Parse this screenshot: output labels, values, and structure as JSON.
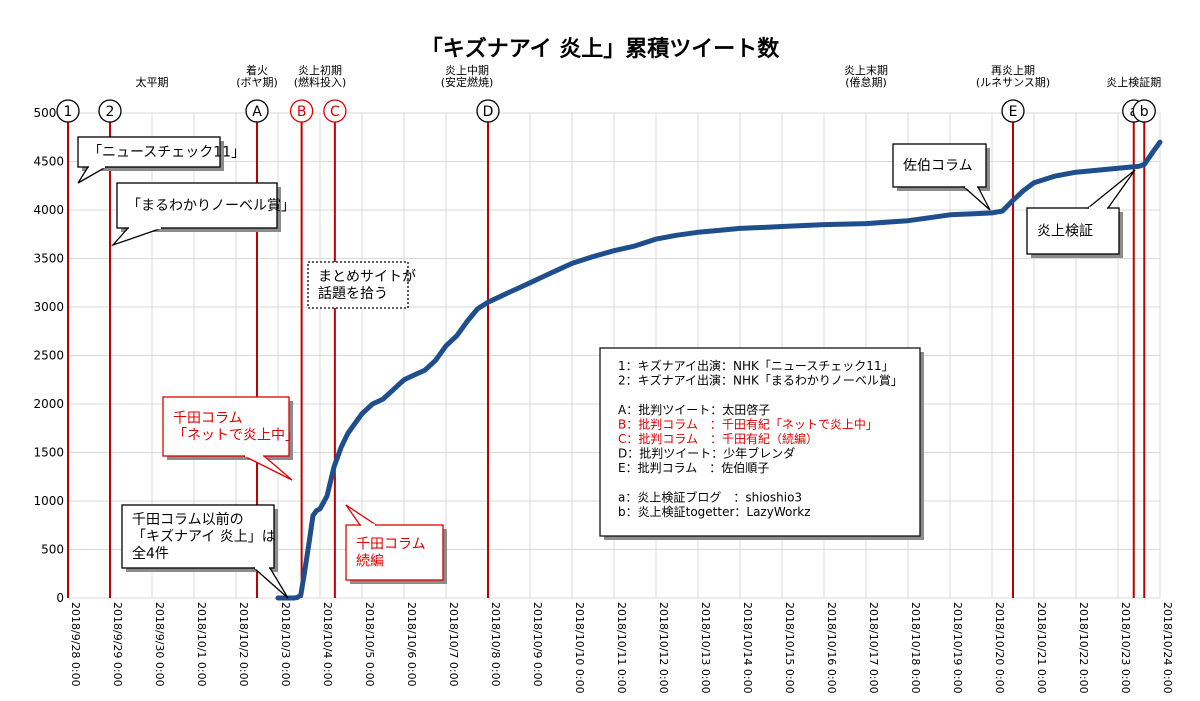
{
  "chart_data": {
    "type": "line",
    "title": "「キズナアイ 炎上」累積ツイート数",
    "ylim": [
      0,
      5000
    ],
    "yticks": [
      0,
      500,
      1000,
      1500,
      2000,
      2500,
      3000,
      3500,
      4000,
      4500,
      5000
    ],
    "ytick_labels": [
      "0",
      "500",
      "1000",
      "1500",
      "2000",
      "2500",
      "3000",
      "3500",
      "4000",
      "4500",
      "5000"
    ],
    "xlim": [
      "2018/9/28 0:00",
      "2018/10/24 0:00"
    ],
    "xtick_labels": [
      "2018/9/28 0:00",
      "2018/9/29 0:00",
      "2018/9/30 0:00",
      "2018/10/1 0:00",
      "2018/10/2 0:00",
      "2018/10/3 0:00",
      "2018/10/4 0:00",
      "2018/10/5 0:00",
      "2018/10/6 0:00",
      "2018/10/7 0:00",
      "2018/10/8 0:00",
      "2018/10/9 0:00",
      "2018/10/10 0:00",
      "2018/10/11 0:00",
      "2018/10/12 0:00",
      "2018/10/13 0:00",
      "2018/10/14 0:00",
      "2018/10/15 0:00",
      "2018/10/16 0:00",
      "2018/10/17 0:00",
      "2018/10/18 0:00",
      "2018/10/19 0:00",
      "2018/10/20 0:00",
      "2018/10/21 0:00",
      "2018/10/22 0:00",
      "2018/10/23 0:00",
      "2018/10/24 0:00"
    ],
    "grid": true,
    "colors": {
      "line": "#1f4e8c",
      "marker": "#c00000",
      "grid": "#d9d9d9",
      "red_text": "#e00000"
    },
    "series": [
      {
        "x": [
          "2018/10/3 0:00",
          "2018/10/3 6:00",
          "2018/10/3 9:00",
          "2018/10/3 11:00",
          "2018/10/3 13:00",
          "2018/10/3 15:00",
          "2018/10/3 18:00",
          "2018/10/3 20:00",
          "2018/10/3 22:00",
          "2018/10/4 0:00",
          "2018/10/4 4:00",
          "2018/10/4 8:00",
          "2018/10/4 12:00",
          "2018/10/4 16:00",
          "2018/10/4 20:00",
          "2018/10/5 0:00",
          "2018/10/5 6:00",
          "2018/10/5 12:00",
          "2018/10/5 18:00",
          "2018/10/6 0:00",
          "2018/10/6 6:00",
          "2018/10/6 12:00",
          "2018/10/6 18:00",
          "2018/10/7 0:00",
          "2018/10/7 6:00",
          "2018/10/7 12:00",
          "2018/10/7 18:00",
          "2018/10/8 0:00",
          "2018/10/8 6:00",
          "2018/10/8 12:00",
          "2018/10/8 18:00",
          "2018/10/9 0:00",
          "2018/10/9 6:00",
          "2018/10/9 12:00",
          "2018/10/9 18:00",
          "2018/10/10 0:00",
          "2018/10/10 12:00",
          "2018/10/11 0:00",
          "2018/10/11 12:00",
          "2018/10/12 0:00",
          "2018/10/12 12:00",
          "2018/10/13 0:00",
          "2018/10/13 12:00",
          "2018/10/14 0:00",
          "2018/10/14 12:00",
          "2018/10/15 0:00",
          "2018/10/16 0:00",
          "2018/10/17 0:00",
          "2018/10/18 0:00",
          "2018/10/18 12:00",
          "2018/10/19 0:00",
          "2018/10/19 12:00",
          "2018/10/20 0:00",
          "2018/10/20 6:00",
          "2018/10/20 12:00",
          "2018/10/20 18:00",
          "2018/10/21 0:00",
          "2018/10/21 12:00",
          "2018/10/22 0:00",
          "2018/10/22 12:00",
          "2018/10/23 0:00",
          "2018/10/23 6:00",
          "2018/10/23 12:00",
          "2018/10/23 15:00",
          "2018/10/23 20:00",
          "2018/10/24 0:00"
        ],
        "y": [
          0,
          0,
          0,
          5,
          30,
          250,
          600,
          850,
          900,
          920,
          1050,
          1350,
          1550,
          1700,
          1800,
          1900,
          2000,
          2050,
          2150,
          2250,
          2300,
          2350,
          2450,
          2600,
          2700,
          2850,
          2980,
          3050,
          3100,
          3150,
          3200,
          3250,
          3300,
          3350,
          3400,
          3450,
          3520,
          3580,
          3630,
          3700,
          3740,
          3770,
          3790,
          3810,
          3820,
          3830,
          3850,
          3860,
          3890,
          3920,
          3950,
          3960,
          3970,
          3990,
          4100,
          4200,
          4280,
          4350,
          4390,
          4410,
          4430,
          4440,
          4450,
          4470,
          4600,
          4700
        ]
      }
    ],
    "markers": [
      {
        "label": "1",
        "x": "2018/9/28 0:00",
        "style": "normal"
      },
      {
        "label": "2",
        "x": "2018/9/29 0:00",
        "style": "normal"
      },
      {
        "label": "A",
        "x": "2018/10/2 12:00",
        "style": "normal"
      },
      {
        "label": "B",
        "x": "2018/10/3 13:30",
        "style": "red"
      },
      {
        "label": "C",
        "x": "2018/10/4 8:30",
        "style": "red"
      },
      {
        "label": "D",
        "x": "2018/10/8 0:00",
        "style": "normal"
      },
      {
        "label": "E",
        "x": "2018/10/20 12:00",
        "style": "normal"
      },
      {
        "label": "a",
        "x": "2018/10/23 9:00",
        "style": "normal"
      },
      {
        "label": "b",
        "x": "2018/10/23 15:00",
        "style": "normal"
      }
    ],
    "periods": [
      {
        "lines": [
          "太平期"
        ],
        "x": "2018/9/30 0:00"
      },
      {
        "lines": [
          "着火",
          "(ボヤ期)"
        ],
        "x": "2018/10/2 12:00"
      },
      {
        "lines": [
          "炎上初期",
          "(燃料投入)"
        ],
        "x": "2018/10/4 0:00"
      },
      {
        "lines": [
          "炎上中期",
          "(安定燃焼)"
        ],
        "x": "2018/10/7 12:00"
      },
      {
        "lines": [
          "炎上末期",
          "(倦怠期)"
        ],
        "x": "2018/10/17 0:00"
      },
      {
        "lines": [
          "再炎上期",
          "(ルネサンス期)"
        ],
        "x": "2018/10/20 12:00"
      },
      {
        "lines": [
          "炎上検証期"
        ],
        "x": "2018/10/23 9:00"
      }
    ],
    "annotations": [
      {
        "id": "news-check",
        "lines": [
          "「ニュースチェック11」"
        ],
        "style": "black"
      },
      {
        "id": "nobel",
        "lines": [
          "「まるわかりノーベル賞」"
        ],
        "style": "black"
      },
      {
        "id": "matome",
        "lines": [
          "まとめサイトが",
          "話題を拾う"
        ],
        "style": "dotted"
      },
      {
        "id": "chida1",
        "lines": [
          "千田コラム",
          "「ネットで炎上中」"
        ],
        "style": "red"
      },
      {
        "id": "chida2",
        "lines": [
          "千田コラム",
          "続編"
        ],
        "style": "red"
      },
      {
        "id": "before",
        "lines": [
          "千田コラム以前の",
          "「キズナアイ 炎上」は",
          "全4件"
        ],
        "style": "black"
      },
      {
        "id": "saeki",
        "lines": [
          "佐伯コラム"
        ],
        "style": "black"
      },
      {
        "id": "kensho",
        "lines": [
          "炎上検証"
        ],
        "style": "black"
      }
    ],
    "legend": {
      "lines": [
        {
          "text": "1：キズナアイ出演：NHK「ニュースチェック11」",
          "color": "#000000"
        },
        {
          "text": "2：キズナアイ出演：NHK「まるわかりノーベル賞」",
          "color": "#000000"
        },
        {
          "text": "",
          "color": "#000000"
        },
        {
          "text": "A：批判ツイート：太田啓子",
          "color": "#000000"
        },
        {
          "text": "B：批判コラム　：千田有紀「ネットで炎上中」",
          "color": "#e00000"
        },
        {
          "text": "C：批判コラム　：千田有紀（続編）",
          "color": "#e00000"
        },
        {
          "text": "D：批判ツイート：少年ブレンダ",
          "color": "#000000"
        },
        {
          "text": "E：批判コラム　：佐伯順子",
          "color": "#000000"
        },
        {
          "text": "",
          "color": "#000000"
        },
        {
          "text": "a：炎上検証ブログ　：shioshio3",
          "color": "#000000"
        },
        {
          "text": "b：炎上検証togetter：LazyWorkz",
          "color": "#000000"
        }
      ]
    }
  }
}
